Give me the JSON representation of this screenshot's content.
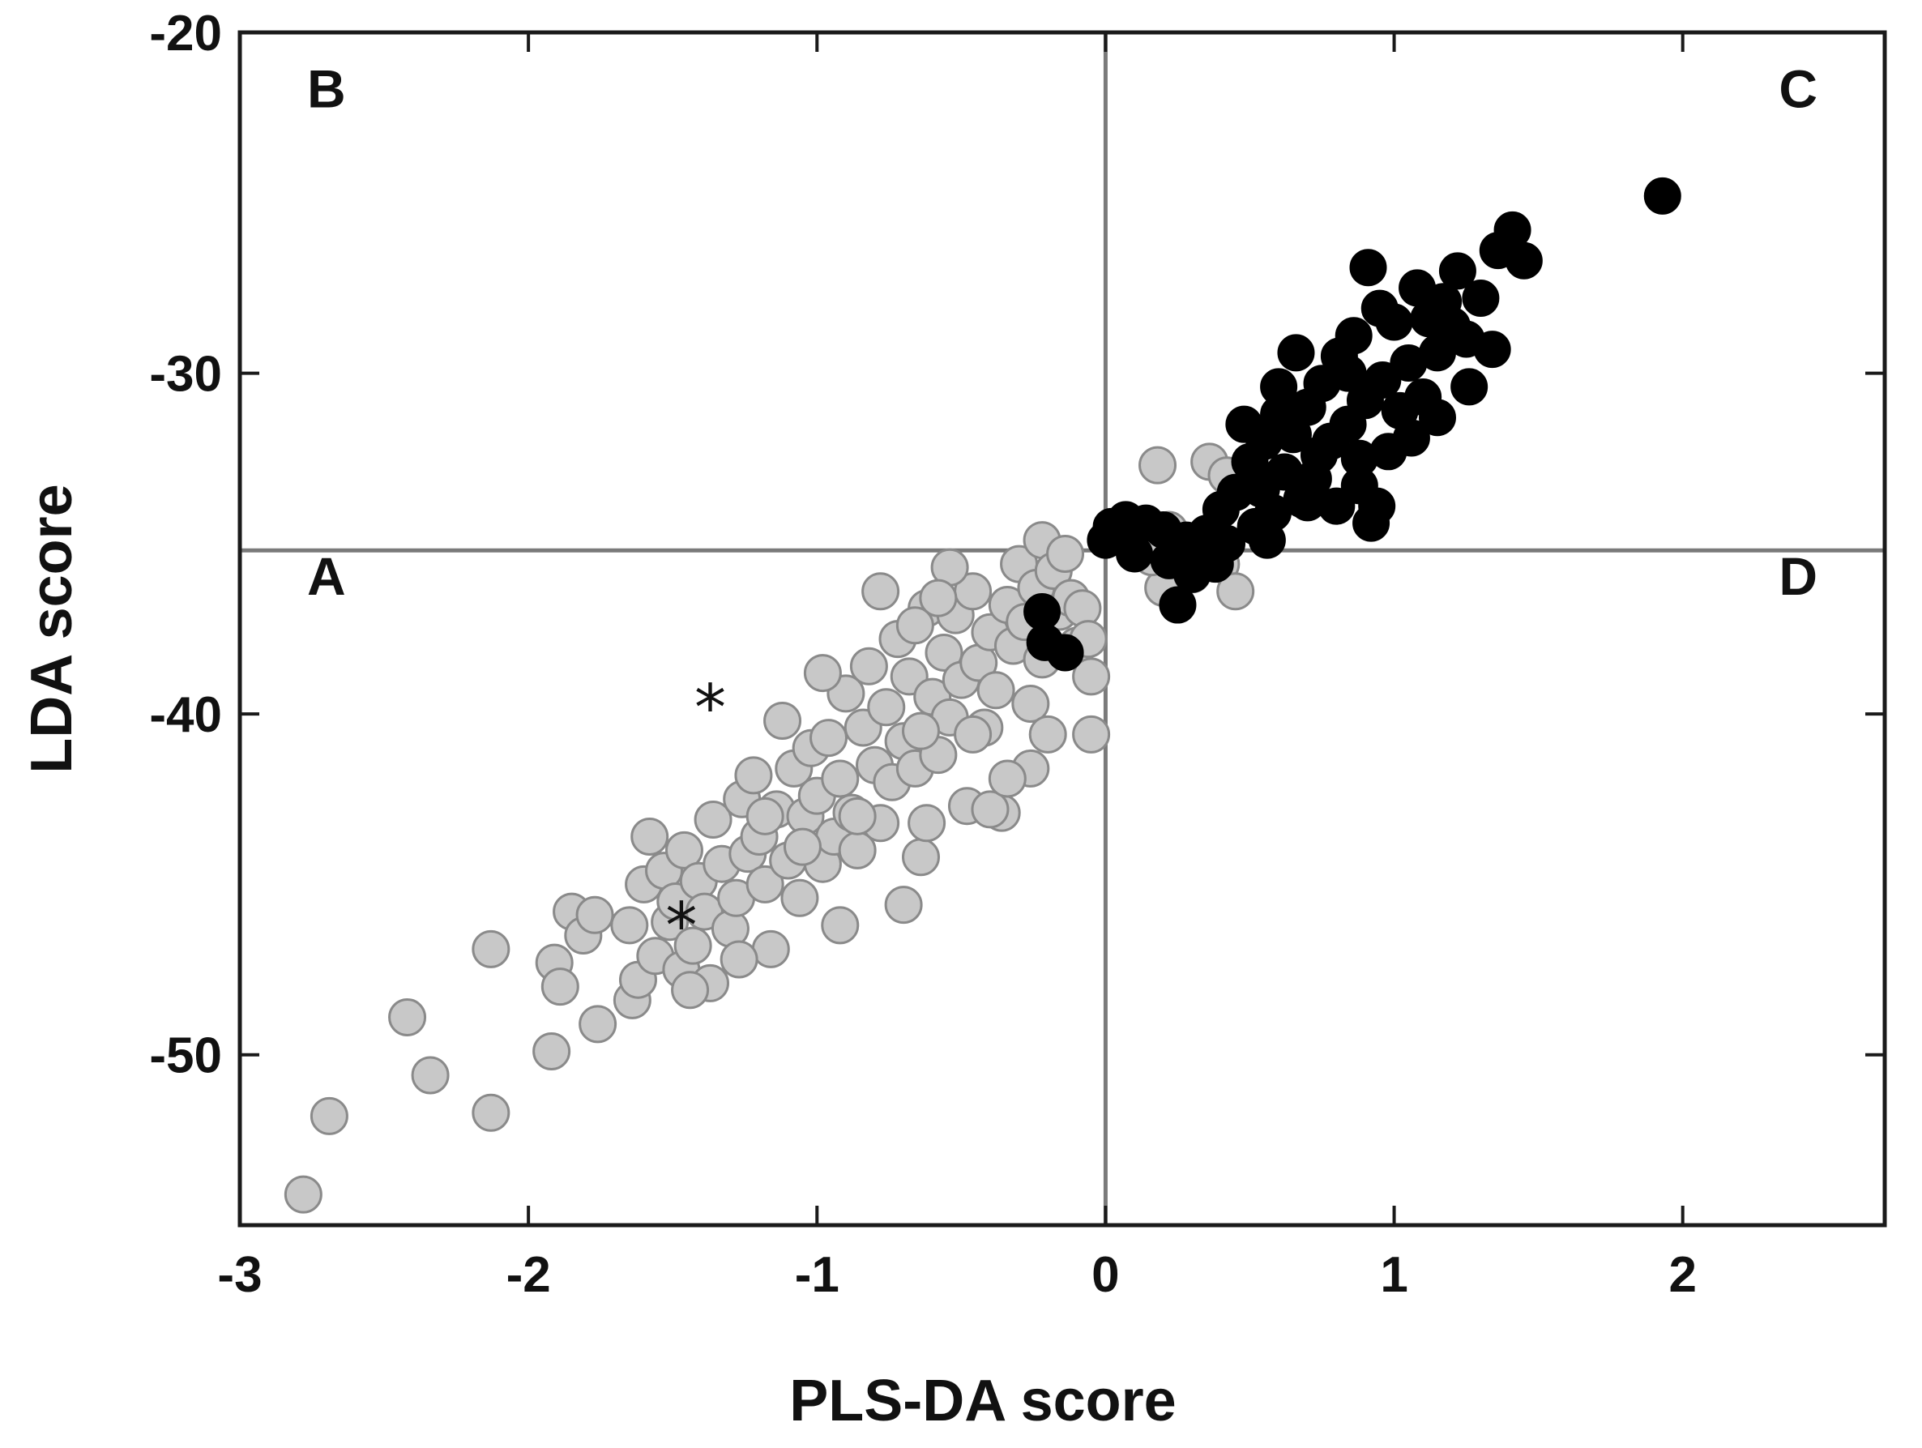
{
  "chart_data": {
    "type": "scatter",
    "xlabel": "PLS-DA score",
    "ylabel": "LDA score",
    "xlim": [
      -3,
      2.7
    ],
    "ylim": [
      -55,
      -20
    ],
    "xticks": [
      {
        "value": -3,
        "label": "-3"
      },
      {
        "value": -2,
        "label": "-2"
      },
      {
        "value": -1,
        "label": "-1"
      },
      {
        "value": 0,
        "label": "0"
      },
      {
        "value": 1,
        "label": "1"
      },
      {
        "value": 2,
        "label": "2"
      }
    ],
    "yticks": [
      {
        "value": -20,
        "label": "-20"
      },
      {
        "value": -30,
        "label": "-30"
      },
      {
        "value": -40,
        "label": "-40"
      },
      {
        "value": -50,
        "label": "-50"
      }
    ],
    "reference_lines": {
      "x": 0,
      "y": -35.2
    },
    "quadrant_labels": [
      {
        "label": "A",
        "x": -2.7,
        "y": -36.5
      },
      {
        "label": "B",
        "x": -2.7,
        "y": -22.2
      },
      {
        "label": "C",
        "x": 2.4,
        "y": -22.2
      },
      {
        "label": "D",
        "x": 2.4,
        "y": -36.5
      }
    ],
    "colors": {
      "gray_fill": "#c8c8c8",
      "gray_edge": "#8a8a8a",
      "black": "#000000"
    },
    "series": [
      {
        "marker": "gray-circle",
        "points": [
          [
            -2.78,
            -54.1
          ],
          [
            -2.69,
            -51.8
          ],
          [
            -2.42,
            -48.9
          ],
          [
            -2.34,
            -50.6
          ],
          [
            -2.13,
            -51.7
          ],
          [
            -2.13,
            -46.9
          ],
          [
            -1.92,
            -49.9
          ],
          [
            -1.91,
            -47.3
          ],
          [
            -1.89,
            -48.0
          ],
          [
            -1.85,
            -45.8
          ],
          [
            -1.81,
            -46.5
          ],
          [
            -1.77,
            -45.9
          ],
          [
            -1.76,
            -49.1
          ],
          [
            -1.65,
            -46.2
          ],
          [
            -1.64,
            -48.4
          ],
          [
            -1.62,
            -47.8
          ],
          [
            -1.6,
            -45.0
          ],
          [
            -1.58,
            -43.6
          ],
          [
            -1.56,
            -47.1
          ],
          [
            -1.53,
            -44.6
          ],
          [
            -1.51,
            -46.1
          ],
          [
            -1.49,
            -45.5
          ],
          [
            -1.47,
            -47.5
          ],
          [
            -1.46,
            -44.0
          ],
          [
            -1.43,
            -46.8
          ],
          [
            -1.41,
            -44.9
          ],
          [
            -1.39,
            -45.8
          ],
          [
            -1.37,
            -47.9
          ],
          [
            -1.36,
            -43.1
          ],
          [
            -1.33,
            -44.4
          ],
          [
            -1.3,
            -46.3
          ],
          [
            -1.28,
            -45.4
          ],
          [
            -1.26,
            -42.5
          ],
          [
            -1.24,
            -44.1
          ],
          [
            -1.22,
            -41.8
          ],
          [
            -1.2,
            -43.6
          ],
          [
            -1.18,
            -45.0
          ],
          [
            -1.16,
            -46.9
          ],
          [
            -1.14,
            -42.8
          ],
          [
            -1.12,
            -40.2
          ],
          [
            -1.1,
            -44.3
          ],
          [
            -1.08,
            -41.6
          ],
          [
            -1.06,
            -45.4
          ],
          [
            -1.04,
            -43.0
          ],
          [
            -1.02,
            -41.0
          ],
          [
            -1.0,
            -42.4
          ],
          [
            -0.98,
            -44.4
          ],
          [
            -0.96,
            -40.7
          ],
          [
            -0.94,
            -43.6
          ],
          [
            -0.92,
            -41.9
          ],
          [
            -0.9,
            -39.4
          ],
          [
            -0.88,
            -42.9
          ],
          [
            -0.86,
            -44.0
          ],
          [
            -0.84,
            -40.4
          ],
          [
            -0.82,
            -38.6
          ],
          [
            -0.8,
            -41.5
          ],
          [
            -0.78,
            -43.2
          ],
          [
            -0.76,
            -39.8
          ],
          [
            -0.74,
            -42.0
          ],
          [
            -0.72,
            -37.8
          ],
          [
            -0.7,
            -40.8
          ],
          [
            -0.68,
            -38.9
          ],
          [
            -0.66,
            -41.6
          ],
          [
            -0.64,
            -44.2
          ],
          [
            -0.62,
            -36.9
          ],
          [
            -0.6,
            -39.5
          ],
          [
            -0.58,
            -41.2
          ],
          [
            -0.56,
            -38.2
          ],
          [
            -0.54,
            -40.1
          ],
          [
            -0.52,
            -37.1
          ],
          [
            -0.5,
            -39.0
          ],
          [
            -0.48,
            -42.7
          ],
          [
            -0.46,
            -36.4
          ],
          [
            -0.44,
            -38.5
          ],
          [
            -0.42,
            -40.4
          ],
          [
            -0.4,
            -37.6
          ],
          [
            -0.38,
            -39.3
          ],
          [
            -0.36,
            -42.9
          ],
          [
            -0.34,
            -36.8
          ],
          [
            -0.32,
            -38.0
          ],
          [
            -0.3,
            -35.6
          ],
          [
            -0.28,
            -37.3
          ],
          [
            -0.26,
            -39.7
          ],
          [
            -0.24,
            -36.3
          ],
          [
            -0.22,
            -38.4
          ],
          [
            -0.22,
            -34.9
          ],
          [
            -0.2,
            -40.6
          ],
          [
            -0.18,
            -35.8
          ],
          [
            -0.16,
            -37.0
          ],
          [
            -0.14,
            -35.3
          ],
          [
            -0.12,
            -36.6
          ],
          [
            -0.1,
            -38.0
          ],
          [
            -0.08,
            -36.9
          ],
          [
            -0.06,
            -37.8
          ],
          [
            -0.05,
            -38.9
          ],
          [
            -0.05,
            -40.6
          ],
          [
            -0.26,
            -41.6
          ],
          [
            -0.92,
            -46.2
          ],
          [
            -1.05,
            -43.9
          ],
          [
            -0.86,
            -43.0
          ],
          [
            -0.7,
            -45.6
          ],
          [
            -0.62,
            -43.2
          ],
          [
            -0.4,
            -42.8
          ],
          [
            -0.34,
            -41.9
          ],
          [
            -0.98,
            -38.8
          ],
          [
            -0.78,
            -36.4
          ],
          [
            -0.54,
            -35.7
          ],
          [
            -0.58,
            -36.6
          ],
          [
            -0.66,
            -37.4
          ],
          [
            -1.18,
            -43.0
          ],
          [
            -1.27,
            -47.2
          ],
          [
            -1.44,
            -48.1
          ],
          [
            -0.46,
            -40.6
          ],
          [
            -0.64,
            -40.5
          ],
          [
            0.18,
            -32.7
          ],
          [
            0.2,
            -36.3
          ],
          [
            0.3,
            -35.9
          ],
          [
            0.32,
            -35.1
          ],
          [
            0.4,
            -35.6
          ],
          [
            0.45,
            -36.4
          ],
          [
            0.22,
            -34.6
          ],
          [
            0.36,
            -32.6
          ],
          [
            0.16,
            -35.4
          ],
          [
            0.42,
            -33.0
          ]
        ]
      },
      {
        "marker": "black-circle",
        "points": [
          [
            1.93,
            -24.8
          ],
          [
            1.41,
            -25.8
          ],
          [
            1.45,
            -26.7
          ],
          [
            1.36,
            -26.4
          ],
          [
            0.91,
            -26.9
          ],
          [
            1.3,
            -27.8
          ],
          [
            1.22,
            -27.0
          ],
          [
            1.17,
            -27.9
          ],
          [
            1.12,
            -28.4
          ],
          [
            1.0,
            -28.5
          ],
          [
            0.95,
            -28.1
          ],
          [
            1.34,
            -29.3
          ],
          [
            1.25,
            -29.0
          ],
          [
            1.15,
            -29.4
          ],
          [
            1.05,
            -29.7
          ],
          [
            0.86,
            -28.9
          ],
          [
            0.81,
            -29.5
          ],
          [
            0.75,
            -30.3
          ],
          [
            1.26,
            -30.4
          ],
          [
            1.1,
            -30.7
          ],
          [
            0.96,
            -30.2
          ],
          [
            0.9,
            -30.8
          ],
          [
            0.66,
            -29.4
          ],
          [
            0.7,
            -31.0
          ],
          [
            0.6,
            -31.2
          ],
          [
            0.84,
            -31.5
          ],
          [
            1.06,
            -31.9
          ],
          [
            0.98,
            -32.3
          ],
          [
            0.78,
            -32.0
          ],
          [
            0.55,
            -32.0
          ],
          [
            0.5,
            -32.6
          ],
          [
            0.62,
            -32.9
          ],
          [
            0.72,
            -33.1
          ],
          [
            0.88,
            -33.3
          ],
          [
            0.94,
            -33.9
          ],
          [
            0.45,
            -33.5
          ],
          [
            0.4,
            -34.0
          ],
          [
            0.58,
            -34.1
          ],
          [
            0.68,
            -33.7
          ],
          [
            0.8,
            -33.9
          ],
          [
            0.35,
            -34.7
          ],
          [
            0.28,
            -34.9
          ],
          [
            0.2,
            -34.6
          ],
          [
            0.14,
            -34.4
          ],
          [
            0.07,
            -34.3
          ],
          [
            0.02,
            -34.5
          ],
          [
            0.0,
            -34.9
          ],
          [
            0.1,
            -35.3
          ],
          [
            0.22,
            -35.5
          ],
          [
            0.32,
            -35.2
          ],
          [
            0.38,
            -35.6
          ],
          [
            0.42,
            -35.0
          ],
          [
            0.52,
            -34.5
          ],
          [
            0.3,
            -35.9
          ],
          [
            0.25,
            -36.8
          ],
          [
            -0.22,
            -37.0
          ],
          [
            -0.21,
            -37.9
          ],
          [
            -0.14,
            -38.2
          ],
          [
            1.02,
            -31.1
          ],
          [
            0.88,
            -32.5
          ],
          [
            0.65,
            -31.8
          ],
          [
            0.74,
            -32.4
          ],
          [
            1.15,
            -31.3
          ],
          [
            0.54,
            -33.4
          ],
          [
            0.48,
            -31.5
          ],
          [
            0.84,
            -30.0
          ],
          [
            1.2,
            -28.6
          ],
          [
            1.08,
            -27.5
          ],
          [
            0.6,
            -30.4
          ],
          [
            0.7,
            -33.8
          ],
          [
            0.92,
            -34.4
          ],
          [
            0.56,
            -34.9
          ]
        ]
      }
    ],
    "annotations": [
      {
        "marker": "star",
        "x": -1.37,
        "y": -39.6
      },
      {
        "marker": "star",
        "x": -1.47,
        "y": -46.0
      }
    ]
  }
}
